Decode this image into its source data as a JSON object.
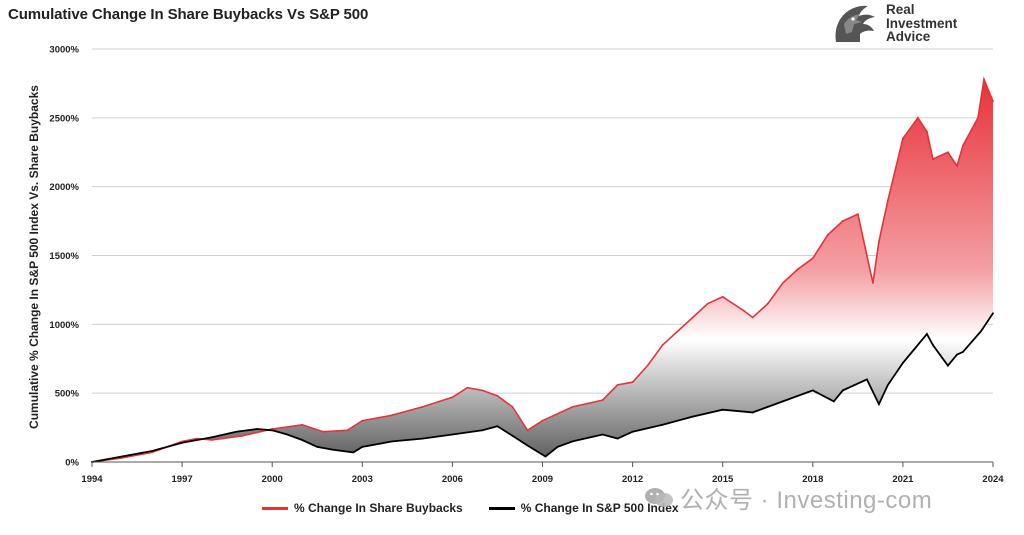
{
  "header": {
    "title": "Cumulative Change In Share Buybacks Vs S&P 500",
    "logo_lines": [
      "Real",
      "Investment",
      "Advice"
    ]
  },
  "watermark": {
    "text": "公众号 · Investing-com"
  },
  "colors": {
    "buybacks": "#e8323a",
    "sp500": "#000000",
    "grid": "#d0d0d0",
    "axis": "#555555"
  },
  "chart_data": {
    "type": "area",
    "title": "Cumulative Change In Share Buybacks Vs S&P 500",
    "xlabel": "",
    "ylabel": "Cumulative % Change In S&P 500 Index Vs. Share Buybacks",
    "xlim": [
      1994,
      2024
    ],
    "ylim": [
      0,
      3000
    ],
    "x_ticks": [
      1994,
      1997,
      2000,
      2003,
      2006,
      2009,
      2012,
      2015,
      2018,
      2021,
      2024
    ],
    "x_tick_labels": [
      "1994",
      "1997",
      "2000",
      "2003",
      "2006",
      "2009",
      "2012",
      "2015",
      "2018",
      "2021",
      "2024"
    ],
    "y_ticks": [
      0,
      500,
      1000,
      1500,
      2000,
      2500,
      3000
    ],
    "y_tick_labels": [
      "0%",
      "500%",
      "1000%",
      "1500%",
      "2000%",
      "2500%",
      "3000%"
    ],
    "grid": true,
    "legend_position": "bottom",
    "series": [
      {
        "name": "% Change In Share Buybacks",
        "points": [
          [
            1994,
            0
          ],
          [
            1995,
            30
          ],
          [
            1996,
            70
          ],
          [
            1997,
            150
          ],
          [
            1997.5,
            170
          ],
          [
            1998,
            160
          ],
          [
            1999,
            190
          ],
          [
            2000,
            240
          ],
          [
            2001,
            270
          ],
          [
            2001.7,
            220
          ],
          [
            2002.5,
            230
          ],
          [
            2003,
            300
          ],
          [
            2004,
            340
          ],
          [
            2005,
            400
          ],
          [
            2006,
            470
          ],
          [
            2006.5,
            540
          ],
          [
            2007,
            520
          ],
          [
            2007.5,
            480
          ],
          [
            2008,
            400
          ],
          [
            2008.5,
            230
          ],
          [
            2009,
            300
          ],
          [
            2010,
            400
          ],
          [
            2011,
            450
          ],
          [
            2011.5,
            560
          ],
          [
            2012,
            580
          ],
          [
            2012.5,
            700
          ],
          [
            2013,
            850
          ],
          [
            2014,
            1050
          ],
          [
            2014.5,
            1150
          ],
          [
            2015,
            1200
          ],
          [
            2015.7,
            1100
          ],
          [
            2016,
            1050
          ],
          [
            2016.5,
            1150
          ],
          [
            2017,
            1300
          ],
          [
            2017.5,
            1400
          ],
          [
            2018,
            1480
          ],
          [
            2018.5,
            1650
          ],
          [
            2019,
            1750
          ],
          [
            2019.5,
            1800
          ],
          [
            2019.8,
            1500
          ],
          [
            2020,
            1300
          ],
          [
            2020.2,
            1600
          ],
          [
            2020.5,
            1900
          ],
          [
            2021,
            2350
          ],
          [
            2021.5,
            2500
          ],
          [
            2021.8,
            2400
          ],
          [
            2022,
            2200
          ],
          [
            2022.5,
            2250
          ],
          [
            2022.8,
            2150
          ],
          [
            2023,
            2300
          ],
          [
            2023.5,
            2500
          ],
          [
            2023.7,
            2780
          ],
          [
            2024,
            2620
          ]
        ]
      },
      {
        "name": "% Change In S&P 500 Index",
        "points": [
          [
            1994,
            0
          ],
          [
            1995,
            40
          ],
          [
            1996,
            80
          ],
          [
            1997,
            140
          ],
          [
            1998,
            180
          ],
          [
            1998.8,
            220
          ],
          [
            1999.5,
            240
          ],
          [
            2000,
            230
          ],
          [
            2000.5,
            200
          ],
          [
            2001,
            160
          ],
          [
            2001.5,
            110
          ],
          [
            2002,
            90
          ],
          [
            2002.7,
            70
          ],
          [
            2003,
            110
          ],
          [
            2004,
            150
          ],
          [
            2005,
            170
          ],
          [
            2006,
            200
          ],
          [
            2007,
            230
          ],
          [
            2007.5,
            260
          ],
          [
            2008,
            190
          ],
          [
            2008.5,
            120
          ],
          [
            2009.1,
            40
          ],
          [
            2009.5,
            110
          ],
          [
            2010,
            150
          ],
          [
            2011,
            200
          ],
          [
            2011.5,
            170
          ],
          [
            2012,
            220
          ],
          [
            2013,
            270
          ],
          [
            2014,
            330
          ],
          [
            2015,
            380
          ],
          [
            2016,
            360
          ],
          [
            2017,
            440
          ],
          [
            2018,
            520
          ],
          [
            2018.7,
            440
          ],
          [
            2019,
            520
          ],
          [
            2019.8,
            600
          ],
          [
            2020.2,
            420
          ],
          [
            2020.5,
            560
          ],
          [
            2021,
            720
          ],
          [
            2021.8,
            930
          ],
          [
            2022,
            850
          ],
          [
            2022.5,
            700
          ],
          [
            2022.8,
            780
          ],
          [
            2023,
            800
          ],
          [
            2023.6,
            950
          ],
          [
            2024,
            1080
          ]
        ]
      }
    ]
  }
}
